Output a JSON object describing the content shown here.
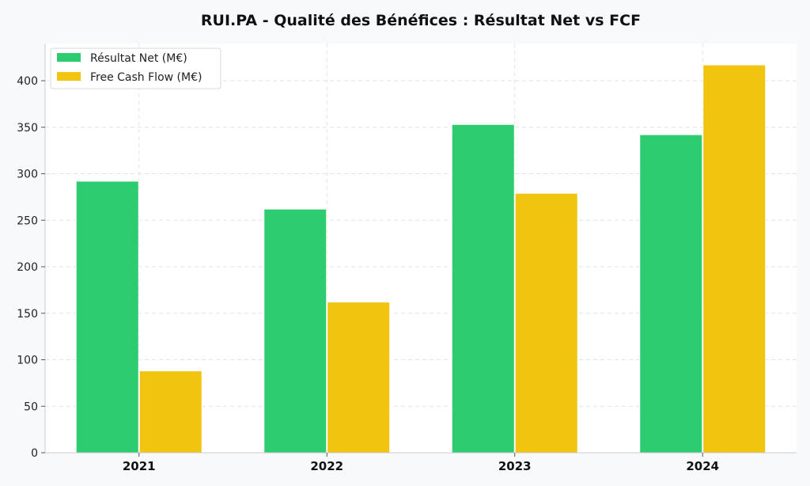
{
  "chart_data": {
    "type": "bar",
    "title": "RUI.PA - Qualité des Bénéfices : Résultat Net vs FCF",
    "xlabel": "",
    "ylabel": "",
    "categories": [
      "2021",
      "2022",
      "2023",
      "2024"
    ],
    "series": [
      {
        "name": "Résultat Net (M€)",
        "values": [
          292,
          262,
          353,
          342
        ],
        "color": "#2ecc71"
      },
      {
        "name": "Free Cash Flow (M€)",
        "values": [
          88,
          162,
          279,
          417
        ],
        "color": "#f1c40f"
      }
    ],
    "ylim": [
      0,
      440
    ],
    "yticks": [
      "0",
      "50",
      "100",
      "150",
      "200",
      "250",
      "300",
      "350",
      "400"
    ],
    "grid": true,
    "legend_position": "top-left"
  }
}
